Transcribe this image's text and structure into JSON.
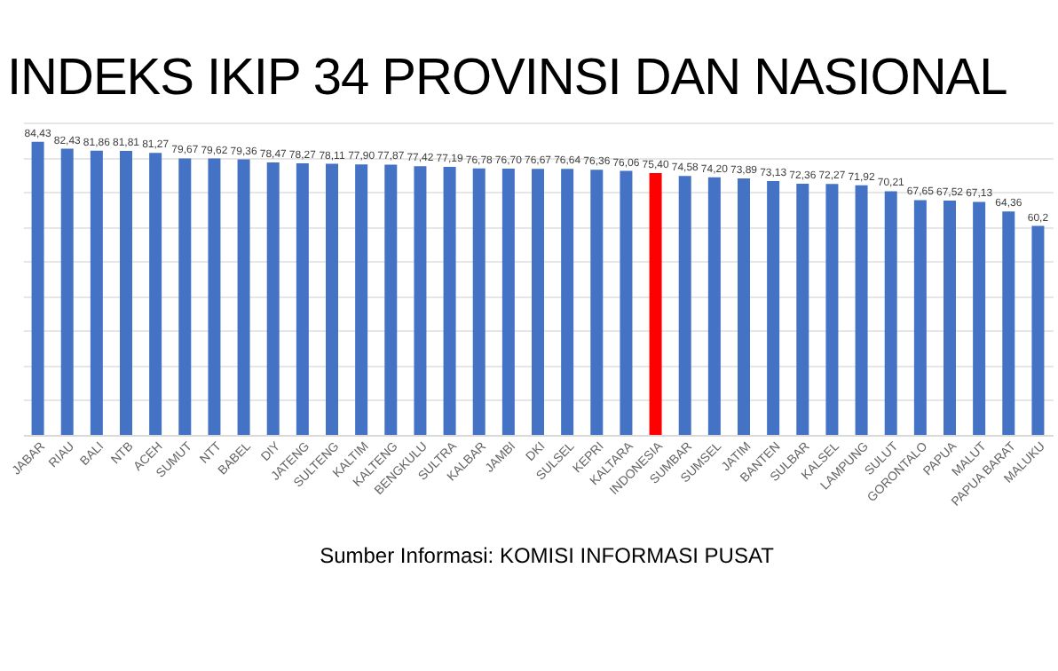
{
  "chart_data": {
    "type": "bar",
    "title": "INDEKS IKIP 34 PROVINSI DAN NASIONAL",
    "categories": [
      "JABAR",
      "RIAU",
      "BALI",
      "NTB",
      "ACEH",
      "SUMUT",
      "NTT",
      "BABEL",
      "DIY",
      "JATENG",
      "SULTENG",
      "KALTIM",
      "KALTENG",
      "BENGKULU",
      "SULTRA",
      "KALBAR",
      "JAMBI",
      "DKI",
      "SULSEL",
      "KEPRI",
      "KALTARA",
      "INDONESIA",
      "SUMBAR",
      "SUMSEL",
      "JATIM",
      "BANTEN",
      "SULBAR",
      "KALSEL",
      "LAMPUNG",
      "SULUT",
      "GORONTALO",
      "PAPUA",
      "MALUT",
      "PAPUA BARAT",
      "MALUKU"
    ],
    "values": [
      84.43,
      82.43,
      81.86,
      81.81,
      81.27,
      79.67,
      79.62,
      79.36,
      78.47,
      78.27,
      78.11,
      77.9,
      77.87,
      77.42,
      77.19,
      76.78,
      76.7,
      76.67,
      76.64,
      76.36,
      76.06,
      75.4,
      74.58,
      74.2,
      73.89,
      73.13,
      72.36,
      72.27,
      71.92,
      70.21,
      67.65,
      67.52,
      67.13,
      64.36,
      60.2
    ],
    "value_labels": [
      "84,43",
      "82,43",
      "81,86",
      "81,81",
      "81,27",
      "79,67",
      "79,62",
      "79,36",
      "78,47",
      "78,27",
      "78,11",
      "77,90",
      "77,87",
      "77,42",
      "77,19",
      "76,78",
      "76,70",
      "76,67",
      "76,64",
      "76,36",
      "76,06",
      "75,40",
      "74,58",
      "74,20",
      "73,89",
      "73,13",
      "72,36",
      "72,27",
      "71,92",
      "70,21",
      "67,65",
      "67,52",
      "67,13",
      "64,36",
      "60,2"
    ],
    "colors": [
      "#4472c4",
      "#4472c4",
      "#4472c4",
      "#4472c4",
      "#4472c4",
      "#4472c4",
      "#4472c4",
      "#4472c4",
      "#4472c4",
      "#4472c4",
      "#4472c4",
      "#4472c4",
      "#4472c4",
      "#4472c4",
      "#4472c4",
      "#4472c4",
      "#4472c4",
      "#4472c4",
      "#4472c4",
      "#4472c4",
      "#4472c4",
      "#ff0000",
      "#4472c4",
      "#4472c4",
      "#4472c4",
      "#4472c4",
      "#4472c4",
      "#4472c4",
      "#4472c4",
      "#4472c4",
      "#4472c4",
      "#4472c4",
      "#4472c4",
      "#4472c4",
      "#4472c4"
    ],
    "grid": true,
    "tick_labels": "x",
    "annotations": [
      "Sumber Informasi: KOMISI INFORMASI PUSAT"
    ]
  }
}
